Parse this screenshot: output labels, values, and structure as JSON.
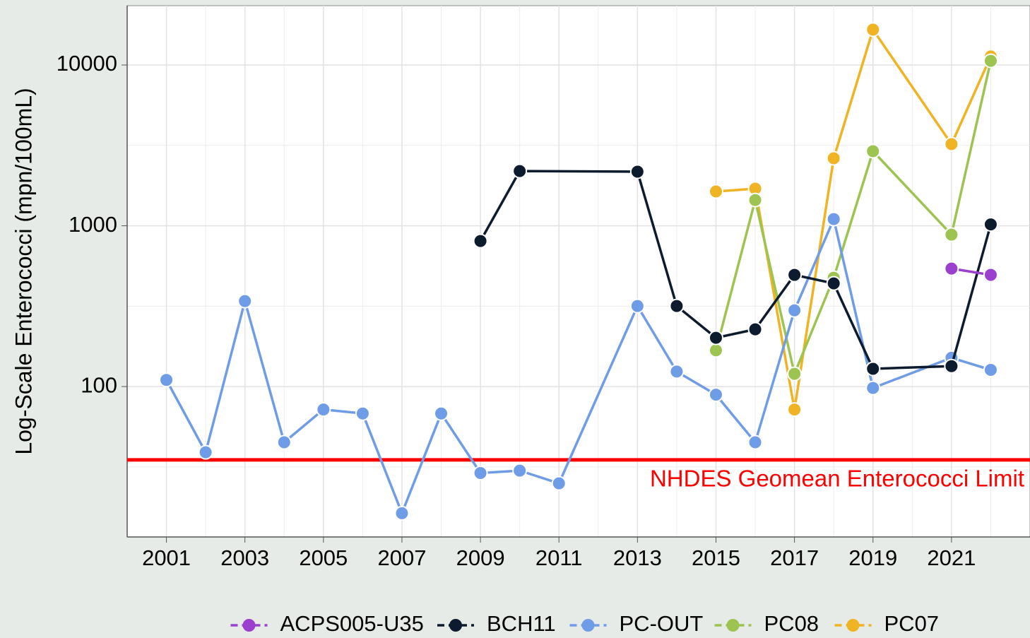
{
  "chart_data": {
    "type": "line",
    "y_label": "Log-Scale Enterococci (mpn/100mL)",
    "log_y": true,
    "grid": true,
    "xlim": [
      2000,
      2023
    ],
    "xticks": [
      2001,
      2003,
      2005,
      2007,
      2009,
      2011,
      2013,
      2015,
      2017,
      2019,
      2021
    ],
    "ylim": [
      11.6,
      23400
    ],
    "yticks": [
      100,
      1000,
      10000
    ],
    "hline": {
      "value": 35,
      "label": "NHDES Geomean Enterococci Limit",
      "color": "#ff0000"
    },
    "legend": "bottom",
    "series": [
      {
        "name": "ACPS005-U35",
        "color": "#9b3fcf",
        "x": [
          2021,
          2022
        ],
        "values": [
          542,
          495
        ]
      },
      {
        "name": "BCH11",
        "color": "#0d1b2e",
        "x": [
          2009,
          2010,
          2013,
          2014,
          2015,
          2016,
          2017,
          2018,
          2019,
          2021,
          2022
        ],
        "values": [
          804,
          2190,
          2170,
          317,
          201,
          227,
          495,
          438,
          129,
          134,
          1020
        ]
      },
      {
        "name": "PC-OUT",
        "color": "#6f9ce6",
        "x": [
          2001,
          2002,
          2003,
          2004,
          2005,
          2006,
          2007,
          2008,
          2009,
          2010,
          2011,
          2013,
          2014,
          2015,
          2016,
          2017,
          2018,
          2019,
          2021,
          2022
        ],
        "values": [
          110,
          39,
          340,
          45,
          72,
          68,
          16.3,
          68,
          29,
          30,
          25,
          317,
          124,
          89,
          45,
          298,
          1100,
          98,
          151,
          127
        ]
      },
      {
        "name": "PC08",
        "color": "#9dc451",
        "x": [
          2015,
          2016,
          2017,
          2018,
          2019,
          2021,
          2022
        ],
        "values": [
          168,
          1446,
          120,
          475,
          2910,
          881,
          10620
        ]
      },
      {
        "name": "PC07",
        "color": "#f0b323",
        "x": [
          2015,
          2016,
          2017,
          2018,
          2019,
          2021,
          2022
        ],
        "values": [
          1634,
          1702,
          72,
          2630,
          16600,
          3220,
          11300
        ]
      }
    ]
  }
}
